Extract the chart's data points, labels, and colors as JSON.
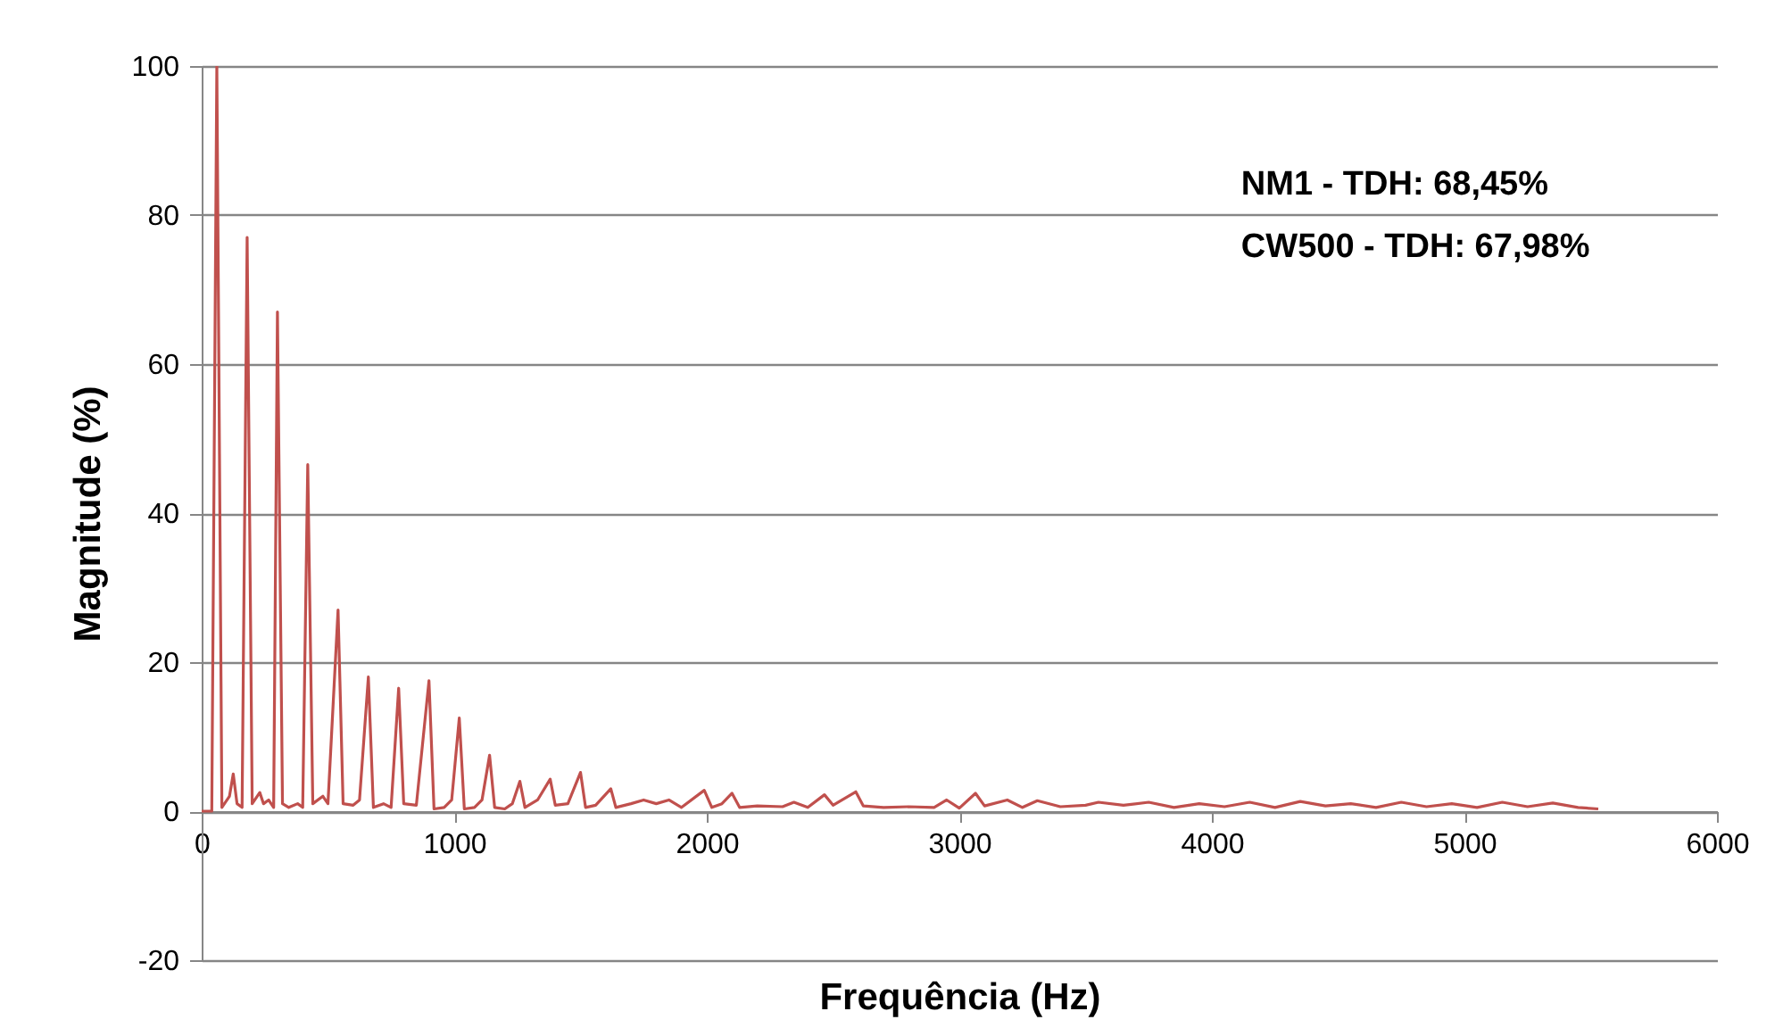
{
  "chart_data": {
    "type": "line",
    "xlabel": "Frequência (Hz)",
    "ylabel": "Magnitude (%)",
    "annotations": [
      "NM1 - TDH: 68,45%",
      "CW500 - TDH: 67,98%"
    ],
    "xlim": [
      0,
      6000
    ],
    "xticks": [
      0,
      1000,
      2000,
      3000,
      4000,
      5000,
      6000
    ],
    "ylim": [
      -20,
      100
    ],
    "yticks": [
      -20,
      0,
      20,
      40,
      60,
      80,
      100
    ],
    "grid": "y",
    "line_style": "solid",
    "color": "#c0504d",
    "x": [
      0,
      40,
      60,
      80,
      110,
      125,
      140,
      160,
      180,
      200,
      230,
      245,
      265,
      285,
      300,
      320,
      345,
      380,
      400,
      420,
      440,
      480,
      500,
      540,
      560,
      600,
      625,
      660,
      680,
      720,
      750,
      780,
      800,
      850,
      900,
      920,
      960,
      990,
      1020,
      1040,
      1080,
      1110,
      1140,
      1160,
      1200,
      1230,
      1260,
      1280,
      1330,
      1380,
      1400,
      1450,
      1500,
      1520,
      1560,
      1620,
      1640,
      1700,
      1750,
      1800,
      1850,
      1900,
      1990,
      2020,
      2060,
      2100,
      2130,
      2200,
      2300,
      2345,
      2400,
      2466,
      2500,
      2590,
      2620,
      2700,
      2800,
      2900,
      2950,
      3000,
      3064,
      3100,
      3190,
      3250,
      3309,
      3400,
      3500,
      3551,
      3650,
      3750,
      3850,
      3950,
      4050,
      4150,
      4250,
      4350,
      4450,
      4550,
      4650,
      4750,
      4850,
      4950,
      5050,
      5150,
      5250,
      5350,
      5450,
      5530
    ],
    "values": [
      0,
      0,
      100,
      0.5,
      2,
      5,
      1,
      0.5,
      77,
      1,
      2.5,
      1,
      1.5,
      0.5,
      67,
      1,
      0.5,
      1,
      0.5,
      46.5,
      1,
      2,
      1,
      27,
      1,
      0.8,
      1.5,
      18,
      0.5,
      1,
      0.5,
      16.5,
      1,
      0.8,
      17.5,
      0.3,
      0.5,
      1.5,
      12.5,
      0.3,
      0.5,
      1.5,
      7.5,
      0.5,
      0.3,
      1,
      4,
      0.5,
      1.5,
      4.3,
      0.8,
      1,
      5.2,
      0.5,
      0.8,
      3,
      0.5,
      1,
      1.5,
      1,
      1.5,
      0.5,
      2.8,
      0.5,
      1,
      2.4,
      0.5,
      0.7,
      0.6,
      1.2,
      0.5,
      2.2,
      0.8,
      2.6,
      0.7,
      0.5,
      0.6,
      0.5,
      1.5,
      0.4,
      2.4,
      0.7,
      1.5,
      0.5,
      1.4,
      0.6,
      0.8,
      1.2,
      0.8,
      1.2,
      0.5,
      1,
      0.6,
      1.2,
      0.5,
      1.3,
      0.7,
      1,
      0.5,
      1.2,
      0.6,
      1,
      0.5,
      1.2,
      0.6,
      1.1,
      0.5,
      0.3
    ]
  }
}
